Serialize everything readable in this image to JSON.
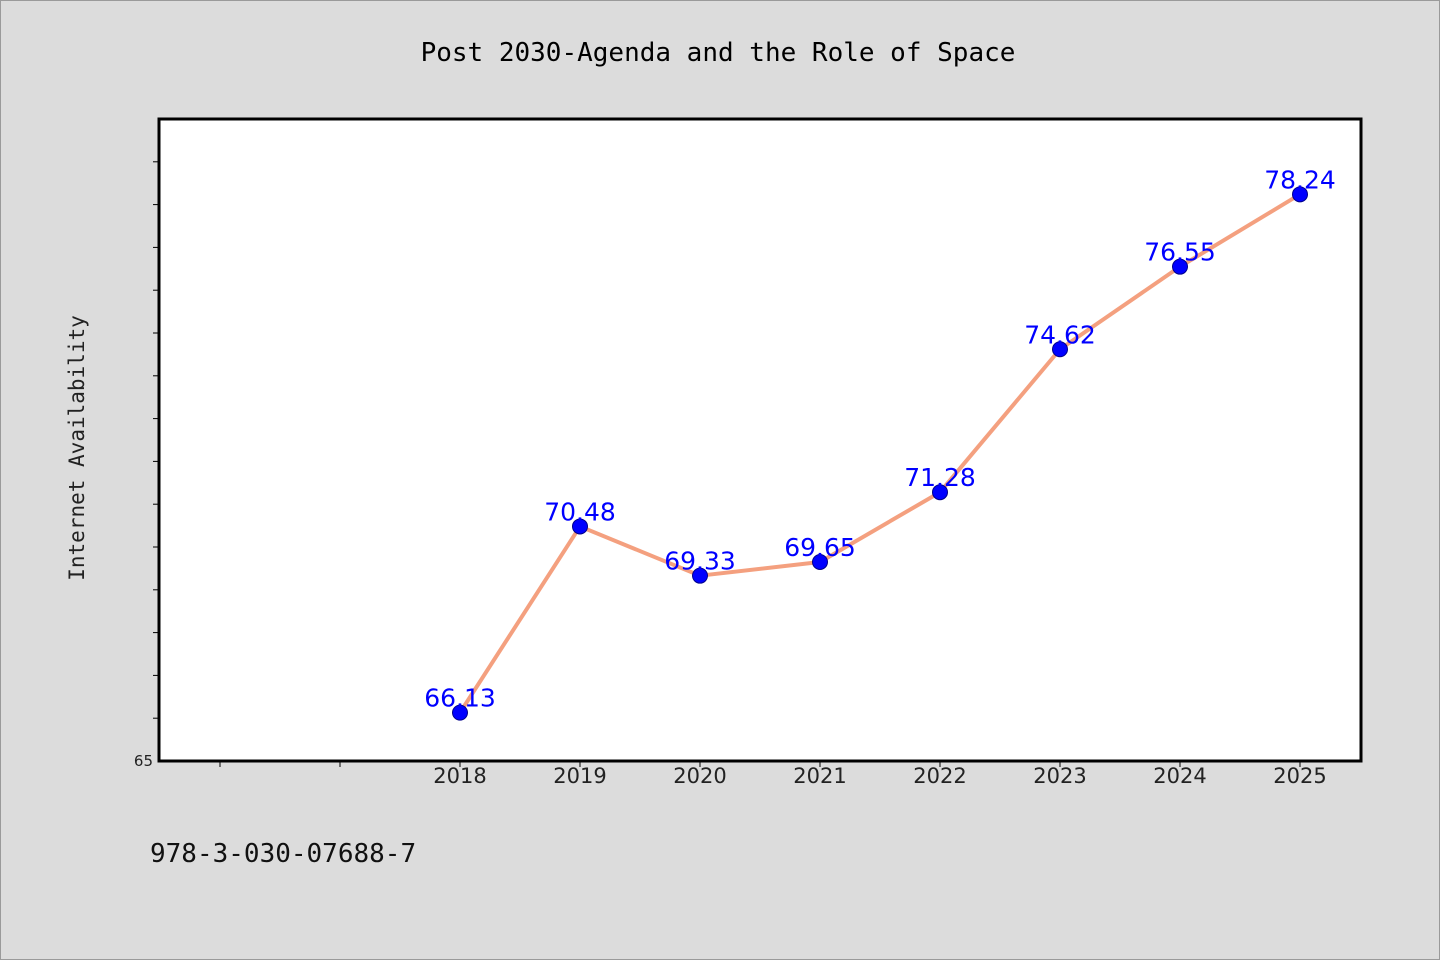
{
  "chart_data": {
    "type": "line",
    "title": "Post 2030-Agenda and the Role of Space",
    "xlabel": "",
    "ylabel": "Internet Availability",
    "categories": [
      "2018",
      "2019",
      "2020",
      "2021",
      "2022",
      "2023",
      "2024",
      "2025"
    ],
    "series": [
      {
        "values": [
          66.13,
          70.48,
          69.33,
          69.65,
          71.28,
          74.62,
          76.55,
          78.24
        ]
      }
    ],
    "data_labels": [
      "66.13",
      "70.48",
      "69.33",
      "69.65",
      "71.28",
      "74.62",
      "76.55",
      "78.24"
    ],
    "ylim": [
      65,
      80
    ],
    "y_min_label": "65",
    "grid": false,
    "legend": "none",
    "colors": {
      "line": "#f4a07f",
      "marker": "#0000ff",
      "data_label": "#0000ff",
      "plot_background": "#ffffff",
      "page_background": "#dcdcdc"
    }
  },
  "footer": {
    "isbn": "978-3-030-07688-7"
  }
}
